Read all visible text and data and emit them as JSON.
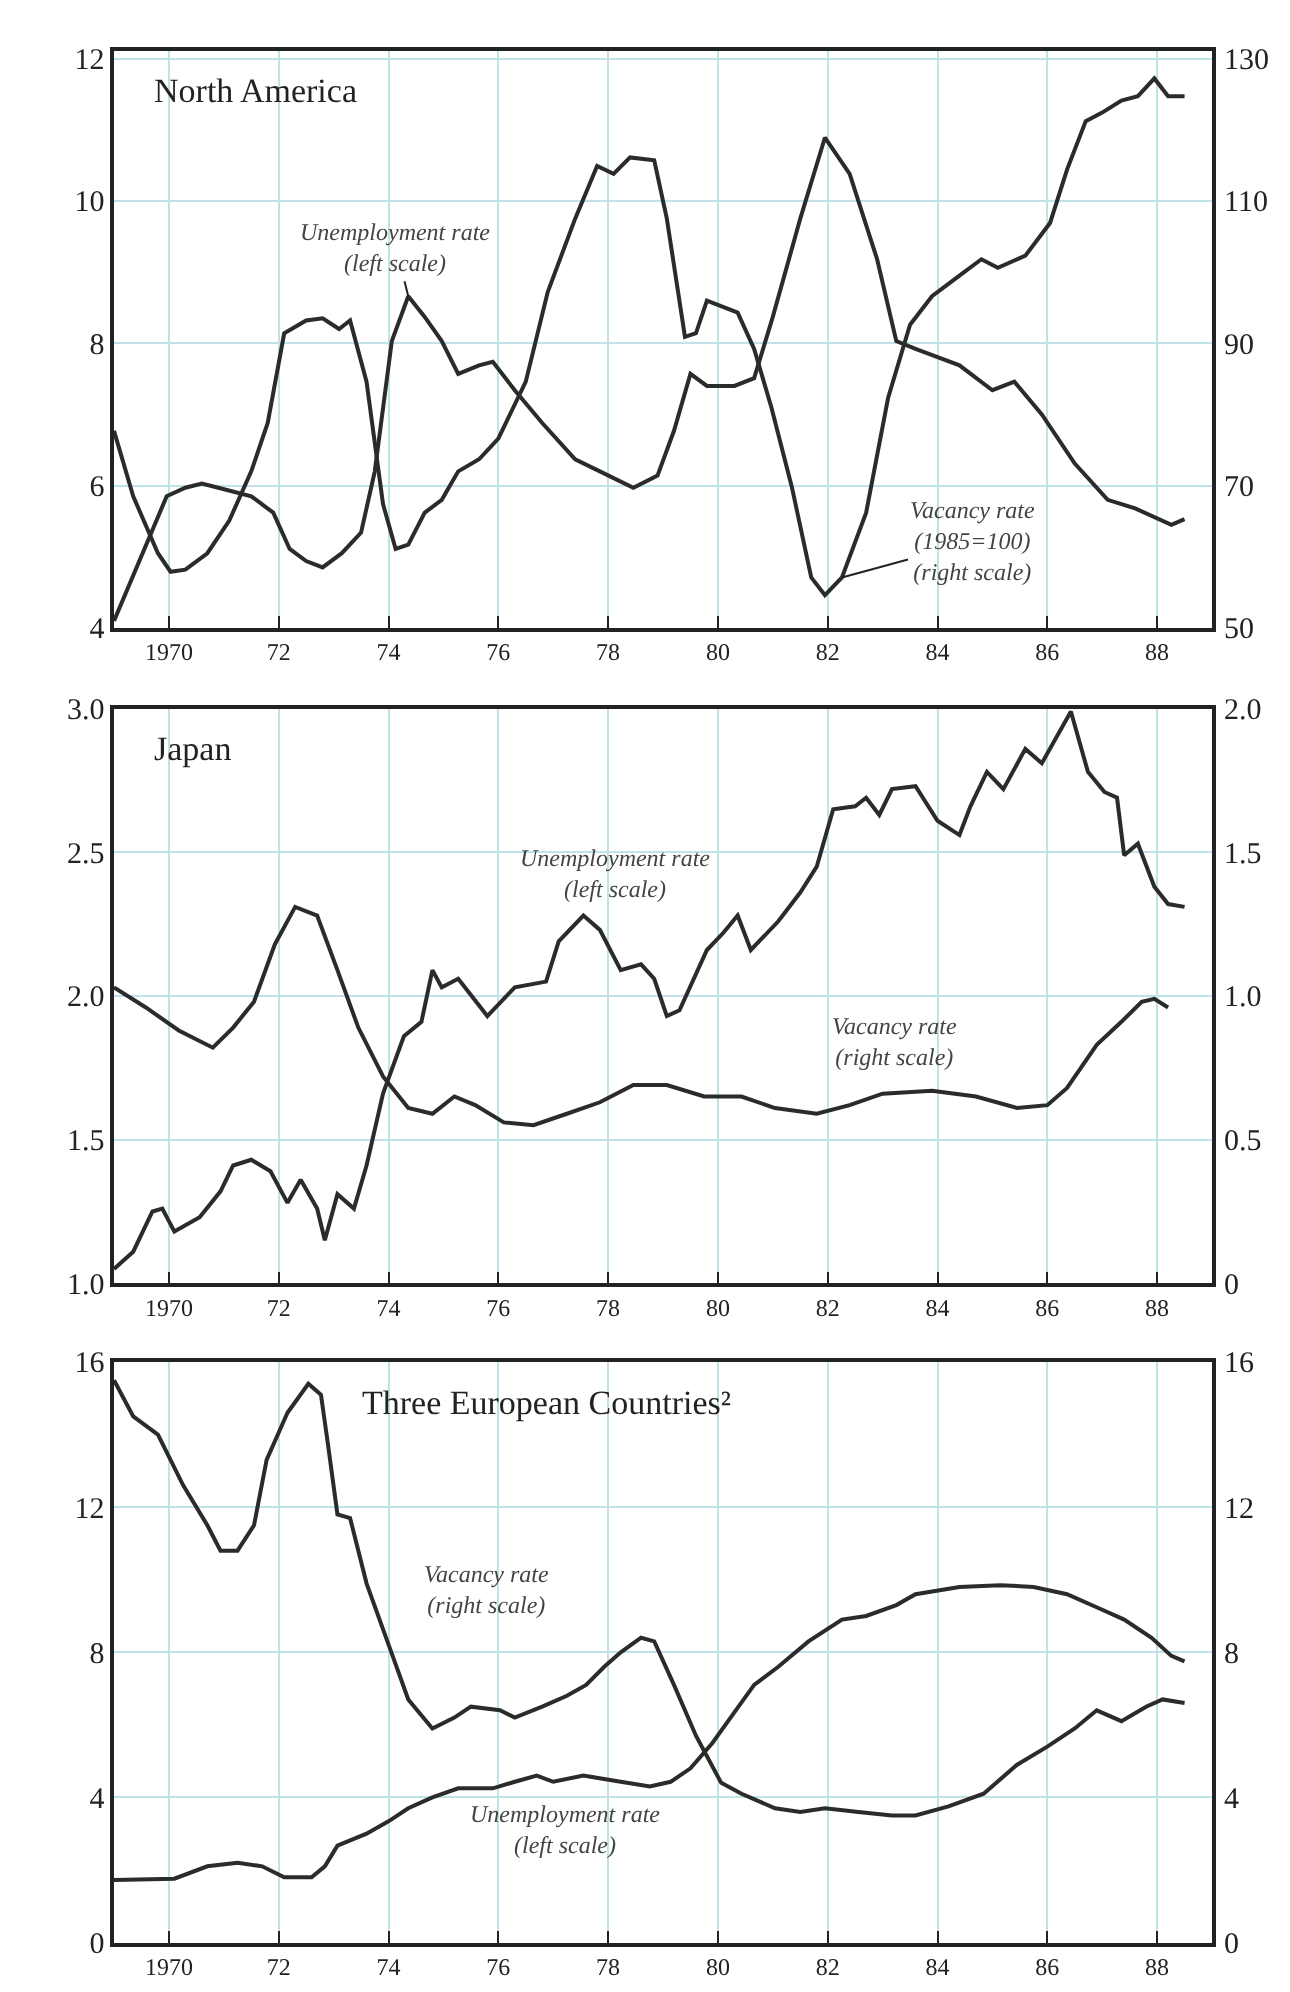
{
  "chart_data": [
    {
      "type": "line",
      "title": "North America",
      "grid": true,
      "xlim": [
        1969,
        1989
      ],
      "xticks": [
        {
          "value": 1970,
          "label": "1970"
        },
        {
          "value": 1972,
          "label": "72"
        },
        {
          "value": 1974,
          "label": "74"
        },
        {
          "value": 1976,
          "label": "76"
        },
        {
          "value": 1978,
          "label": "78"
        },
        {
          "value": 1980,
          "label": "80"
        },
        {
          "value": 1982,
          "label": "82"
        },
        {
          "value": 1984,
          "label": "84"
        },
        {
          "value": 1986,
          "label": "86"
        },
        {
          "value": 1988,
          "label": "88"
        }
      ],
      "ylim": [
        4,
        12.1
      ],
      "yticks": [
        4,
        6,
        8,
        10,
        12
      ],
      "y2lim": [
        50,
        131
      ],
      "y2ticks": [
        50,
        70,
        90,
        110,
        130
      ],
      "series": [
        {
          "name": "Unemployment rate (left scale)",
          "color": "#2b2b2b",
          "x": [
            1969.0,
            1969.96,
            1970.3,
            1970.6,
            1970.9,
            1971.5,
            1971.9,
            1972.2,
            1972.5,
            1972.8,
            1973.15,
            1973.5,
            1973.75,
            1974.06,
            1974.36,
            1974.66,
            1974.97,
            1975.27,
            1975.65,
            1975.9,
            1976.3,
            1976.8,
            1977.4,
            1977.85,
            1978.46,
            1978.9,
            1979.2,
            1979.5,
            1979.8,
            1980.3,
            1980.66,
            1981.0,
            1981.5,
            1981.95,
            1982.4,
            1982.9,
            1983.25,
            1983.6,
            1984.4,
            1985.0,
            1985.4,
            1985.9,
            1986.5,
            1987.1,
            1987.6,
            1988.26,
            1988.5
          ],
          "values": [
            4.1,
            5.85,
            5.97,
            6.03,
            5.97,
            5.85,
            5.62,
            5.11,
            4.94,
            4.85,
            5.05,
            5.34,
            6.2,
            8.03,
            8.66,
            8.37,
            8.03,
            7.57,
            7.69,
            7.74,
            7.34,
            6.88,
            6.37,
            6.2,
            5.97,
            6.14,
            6.77,
            7.57,
            7.4,
            7.4,
            7.51,
            8.37,
            9.75,
            10.89,
            10.38,
            9.18,
            8.03,
            7.92,
            7.69,
            7.34,
            7.46,
            7.0,
            6.31,
            5.8,
            5.68,
            5.45,
            5.53
          ]
        },
        {
          "name": "Vacancy rate (1985=100) (right scale)",
          "color": "#2b2b2b",
          "axis": "y2",
          "x": [
            1969.0,
            1969.35,
            1969.8,
            1970.03,
            1970.3,
            1970.7,
            1971.1,
            1971.5,
            1971.8,
            1972.1,
            1972.5,
            1972.8,
            1973.1,
            1973.3,
            1973.6,
            1973.9,
            1974.13,
            1974.36,
            1974.66,
            1974.97,
            1975.27,
            1975.65,
            1976.0,
            1976.5,
            1976.9,
            1977.4,
            1977.8,
            1978.1,
            1978.4,
            1978.84,
            1979.07,
            1979.4,
            1979.6,
            1979.8,
            1980.36,
            1980.66,
            1980.97,
            1981.35,
            1981.7,
            1981.95,
            1982.26,
            1982.7,
            1983.1,
            1983.5,
            1983.9,
            1984.4,
            1984.8,
            1985.1,
            1985.6,
            1986.05,
            1986.36,
            1986.7,
            1987.0,
            1987.35,
            1987.65,
            1987.95,
            1988.2,
            1988.5
          ],
          "values": [
            77.7,
            68.5,
            60.5,
            57.9,
            58.2,
            60.5,
            65.1,
            72.0,
            78.8,
            91.4,
            93.2,
            93.5,
            92.0,
            93.2,
            84.6,
            67.4,
            61.1,
            61.7,
            66.2,
            68.0,
            72.0,
            73.7,
            76.6,
            84.6,
            97.2,
            107.5,
            114.9,
            113.8,
            116.1,
            115.7,
            107.5,
            90.9,
            91.4,
            96.0,
            94.3,
            89.2,
            81.1,
            69.7,
            57.1,
            54.6,
            57.1,
            66.2,
            82.3,
            92.6,
            96.6,
            99.5,
            101.8,
            100.6,
            102.3,
            106.9,
            114.4,
            121.2,
            122.4,
            124.1,
            124.7,
            127.2,
            124.7,
            124.7
          ]
        }
      ]
    },
    {
      "type": "line",
      "title": "Japan",
      "grid": true,
      "xlim": [
        1969,
        1989
      ],
      "xticks": [
        {
          "value": 1970,
          "label": "1970"
        },
        {
          "value": 1972,
          "label": "72"
        },
        {
          "value": 1974,
          "label": "74"
        },
        {
          "value": 1976,
          "label": "76"
        },
        {
          "value": 1978,
          "label": "78"
        },
        {
          "value": 1980,
          "label": "80"
        },
        {
          "value": 1982,
          "label": "82"
        },
        {
          "value": 1984,
          "label": "84"
        },
        {
          "value": 1986,
          "label": "86"
        },
        {
          "value": 1988,
          "label": "88"
        }
      ],
      "ylim": [
        1.0,
        3.0
      ],
      "yticks": [
        {
          "value": 1.0,
          "label": "1.0"
        },
        1.5,
        {
          "value": 2.0,
          "label": "2.0"
        },
        2.5,
        {
          "value": 3.0,
          "label": "3.0"
        }
      ],
      "y2lim": [
        0,
        2
      ],
      "y2ticks": [
        0,
        0.5,
        {
          "value": 1.0,
          "label": "1.0"
        },
        1.5,
        {
          "value": 2.0,
          "label": "2.0"
        }
      ],
      "series": [
        {
          "name": "Unemployment rate (left scale)",
          "color": "#2b2b2b",
          "x": [
            1969.0,
            1969.35,
            1969.7,
            1969.88,
            1970.1,
            1970.56,
            1970.94,
            1971.17,
            1971.5,
            1971.85,
            1972.16,
            1972.4,
            1972.7,
            1972.84,
            1973.07,
            1973.37,
            1973.6,
            1973.9,
            1974.28,
            1974.6,
            1974.8,
            1974.97,
            1975.27,
            1975.8,
            1976.3,
            1976.87,
            1977.1,
            1977.55,
            1977.85,
            1978.23,
            1978.6,
            1978.84,
            1979.07,
            1979.3,
            1979.8,
            1980.1,
            1980.36,
            1980.6,
            1981.1,
            1981.5,
            1981.8,
            1982.1,
            1982.5,
            1982.7,
            1982.94,
            1983.17,
            1983.6,
            1984.0,
            1984.4,
            1984.6,
            1984.9,
            1985.2,
            1985.6,
            1985.9,
            1986.43,
            1986.74,
            1987.04,
            1987.27,
            1987.4,
            1987.65,
            1987.95,
            1988.2,
            1988.5
          ],
          "values": [
            1.05,
            1.11,
            1.25,
            1.26,
            1.18,
            1.23,
            1.32,
            1.41,
            1.43,
            1.39,
            1.28,
            1.36,
            1.26,
            1.15,
            1.31,
            1.26,
            1.41,
            1.66,
            1.86,
            1.91,
            2.09,
            2.03,
            2.06,
            1.93,
            2.03,
            2.05,
            2.19,
            2.28,
            2.23,
            2.09,
            2.11,
            2.06,
            1.93,
            1.95,
            2.16,
            2.22,
            2.28,
            2.16,
            2.26,
            2.36,
            2.45,
            2.65,
            2.66,
            2.69,
            2.63,
            2.72,
            2.73,
            2.61,
            2.56,
            2.66,
            2.78,
            2.72,
            2.86,
            2.81,
            2.99,
            2.78,
            2.71,
            2.69,
            2.49,
            2.53,
            2.38,
            2.32,
            2.31
          ]
        },
        {
          "name": "Vacancy rate (right scale)",
          "color": "#2b2b2b",
          "axis": "y2",
          "x": [
            1969.0,
            1969.58,
            1970.18,
            1970.8,
            1971.17,
            1971.55,
            1971.93,
            1972.3,
            1972.7,
            1973.07,
            1973.45,
            1973.9,
            1974.36,
            1974.8,
            1975.2,
            1975.58,
            1976.1,
            1976.64,
            1977.25,
            1977.85,
            1978.46,
            1979.07,
            1979.75,
            1980.43,
            1981.04,
            1981.8,
            1982.4,
            1983.0,
            1983.9,
            1984.7,
            1985.45,
            1986.0,
            1986.36,
            1986.9,
            1987.35,
            1987.72,
            1987.95,
            1988.2
          ],
          "values": [
            1.03,
            0.96,
            0.88,
            0.82,
            0.89,
            0.98,
            1.18,
            1.31,
            1.28,
            1.09,
            0.89,
            0.72,
            0.61,
            0.59,
            0.65,
            0.62,
            0.56,
            0.55,
            0.59,
            0.63,
            0.69,
            0.69,
            0.65,
            0.65,
            0.61,
            0.59,
            0.62,
            0.66,
            0.67,
            0.65,
            0.61,
            0.62,
            0.68,
            0.83,
            0.91,
            0.98,
            0.99,
            0.96
          ]
        }
      ]
    },
    {
      "type": "line",
      "title": "Three European Countries²",
      "grid": true,
      "xlim": [
        1969,
        1989
      ],
      "xticks": [
        {
          "value": 1970,
          "label": "1970"
        },
        {
          "value": 1972,
          "label": "72"
        },
        {
          "value": 1974,
          "label": "74"
        },
        {
          "value": 1976,
          "label": "76"
        },
        {
          "value": 1978,
          "label": "78"
        },
        {
          "value": 1980,
          "label": "80"
        },
        {
          "value": 1982,
          "label": "82"
        },
        {
          "value": 1984,
          "label": "84"
        },
        {
          "value": 1986,
          "label": "86"
        },
        {
          "value": 1988,
          "label": "88"
        }
      ],
      "ylim": [
        0,
        16
      ],
      "yticks": [
        0,
        4,
        8,
        12,
        16
      ],
      "y2lim": [
        0,
        16
      ],
      "y2ticks": [
        0,
        4,
        8,
        12,
        16
      ],
      "series": [
        {
          "name": "Vacancy rate (right scale)",
          "color": "#2b2b2b",
          "axis": "y2",
          "x": [
            1969.0,
            1969.35,
            1969.8,
            1970.26,
            1970.7,
            1970.94,
            1971.25,
            1971.55,
            1971.78,
            1972.16,
            1972.54,
            1972.77,
            1972.9,
            1973.07,
            1973.3,
            1973.6,
            1973.98,
            1974.36,
            1974.8,
            1975.2,
            1975.5,
            1976.03,
            1976.3,
            1976.8,
            1977.25,
            1977.6,
            1977.93,
            1978.23,
            1978.6,
            1978.84,
            1979.2,
            1979.6,
            1980.06,
            1980.43,
            1981.04,
            1981.5,
            1981.95,
            1982.56,
            1983.17,
            1983.6,
            1984.2,
            1984.84,
            1985.45,
            1986.0,
            1986.5,
            1986.9,
            1987.35,
            1987.8,
            1988.1,
            1988.5
          ],
          "values": [
            15.5,
            14.5,
            14.0,
            12.6,
            11.5,
            10.8,
            10.8,
            11.5,
            13.3,
            14.6,
            15.4,
            15.1,
            13.7,
            11.8,
            11.7,
            9.9,
            8.3,
            6.7,
            5.9,
            6.2,
            6.5,
            6.4,
            6.2,
            6.5,
            6.8,
            7.1,
            7.6,
            8.0,
            8.4,
            8.3,
            7.1,
            5.7,
            4.4,
            4.1,
            3.7,
            3.6,
            3.7,
            3.6,
            3.5,
            3.5,
            3.75,
            4.1,
            4.9,
            5.4,
            5.9,
            6.4,
            6.1,
            6.5,
            6.7,
            6.6
          ]
        },
        {
          "name": "Unemployment rate (left scale)",
          "color": "#2b2b2b",
          "x": [
            1969.0,
            1970.1,
            1970.7,
            1971.25,
            1971.7,
            1972.1,
            1972.6,
            1972.84,
            1973.07,
            1973.6,
            1974.0,
            1974.36,
            1974.8,
            1975.27,
            1975.9,
            1976.3,
            1976.7,
            1977.0,
            1977.55,
            1978.23,
            1978.76,
            1979.14,
            1979.5,
            1979.9,
            1980.28,
            1980.66,
            1981.1,
            1981.65,
            1982.26,
            1982.7,
            1983.25,
            1983.6,
            1984.4,
            1985.14,
            1985.75,
            1986.36,
            1986.96,
            1987.4,
            1987.9,
            1988.26,
            1988.5
          ],
          "values": [
            1.72,
            1.76,
            2.1,
            2.2,
            2.1,
            1.8,
            1.8,
            2.1,
            2.67,
            3.0,
            3.34,
            3.7,
            4.0,
            4.25,
            4.25,
            4.43,
            4.6,
            4.43,
            4.6,
            4.43,
            4.3,
            4.43,
            4.8,
            5.5,
            6.3,
            7.1,
            7.6,
            8.3,
            8.9,
            9.0,
            9.3,
            9.6,
            9.8,
            9.85,
            9.8,
            9.6,
            9.2,
            8.9,
            8.4,
            7.9,
            7.75
          ]
        }
      ]
    }
  ]
}
